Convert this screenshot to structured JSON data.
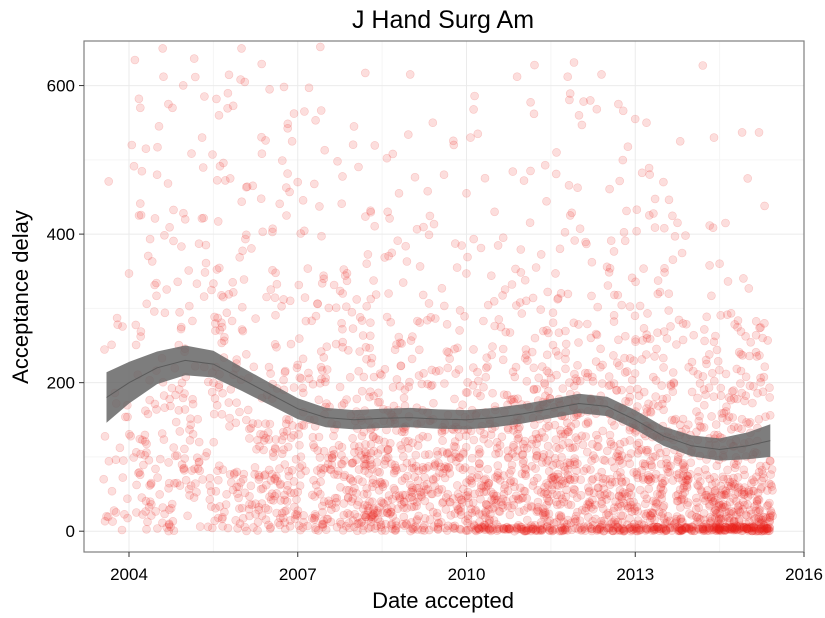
{
  "chart_data": {
    "type": "scatter",
    "title": "J Hand Surg Am",
    "xlabel": "Date accepted",
    "ylabel": "Acceptance delay",
    "xlim": [
      2003.2,
      2016.0
    ],
    "ylim": [
      -28,
      660
    ],
    "x_ticks": [
      2004,
      2007,
      2010,
      2013,
      2016
    ],
    "x_tick_labels": [
      "2004",
      "2007",
      "2010",
      "2013",
      "2016"
    ],
    "y_ticks": [
      0,
      200,
      400,
      600
    ],
    "y_tick_labels": [
      "0",
      "200",
      "400",
      "600"
    ],
    "grid": true,
    "legend": "none",
    "point_color": "#e8241c",
    "point_opacity": 0.15,
    "smooth_color": "#666666",
    "points_sample": [
      [
        2003.6,
        20
      ],
      [
        2003.8,
        278
      ],
      [
        2003.9,
        95
      ],
      [
        2004.0,
        347
      ],
      [
        2004.05,
        520
      ],
      [
        2004.2,
        570
      ],
      [
        2004.3,
        515
      ],
      [
        2004.5,
        480
      ],
      [
        2004.6,
        650
      ],
      [
        2004.7,
        575
      ],
      [
        2005.0,
        420
      ],
      [
        2005.3,
        530
      ],
      [
        2005.5,
        200
      ],
      [
        2005.6,
        560
      ],
      [
        2005.8,
        475
      ],
      [
        2006.0,
        650
      ],
      [
        2006.2,
        465
      ],
      [
        2006.5,
        595
      ],
      [
        2006.8,
        425
      ],
      [
        2006.9,
        525
      ],
      [
        2007.0,
        470
      ],
      [
        2007.2,
        597
      ],
      [
        2007.4,
        652
      ],
      [
        2007.8,
        320
      ],
      [
        2008.0,
        545
      ],
      [
        2008.2,
        617
      ],
      [
        2008.6,
        430
      ],
      [
        2008.8,
        455
      ],
      [
        2009.0,
        615
      ],
      [
        2009.4,
        550
      ],
      [
        2009.6,
        480
      ],
      [
        2010.0,
        455
      ],
      [
        2010.2,
        535
      ],
      [
        2010.5,
        430
      ],
      [
        2010.9,
        612
      ],
      [
        2011.2,
        562
      ],
      [
        2011.6,
        510
      ],
      [
        2011.8,
        612
      ],
      [
        2012.0,
        560
      ],
      [
        2012.2,
        580
      ],
      [
        2012.4,
        615
      ],
      [
        2012.7,
        575
      ],
      [
        2013.0,
        555
      ],
      [
        2013.2,
        550
      ],
      [
        2013.5,
        470
      ],
      [
        2013.8,
        525
      ],
      [
        2014.2,
        627
      ],
      [
        2014.4,
        530
      ],
      [
        2014.9,
        537
      ],
      [
        2015.0,
        475
      ],
      [
        2015.2,
        537
      ],
      [
        2015.3,
        438
      ],
      [
        2015.1,
        195
      ],
      [
        2014.5,
        10
      ],
      [
        2013.5,
        5
      ]
    ],
    "smooth": [
      {
        "x": 2003.6,
        "y": 180,
        "se": 34
      },
      {
        "x": 2004.0,
        "y": 200,
        "se": 28
      },
      {
        "x": 2004.5,
        "y": 220,
        "se": 22
      },
      {
        "x": 2005.0,
        "y": 230,
        "se": 20
      },
      {
        "x": 2005.5,
        "y": 225,
        "se": 18
      },
      {
        "x": 2006.0,
        "y": 205,
        "se": 16
      },
      {
        "x": 2006.5,
        "y": 185,
        "se": 15
      },
      {
        "x": 2007.0,
        "y": 165,
        "se": 14
      },
      {
        "x": 2007.5,
        "y": 153,
        "se": 13
      },
      {
        "x": 2008.0,
        "y": 150,
        "se": 13
      },
      {
        "x": 2008.5,
        "y": 152,
        "se": 13
      },
      {
        "x": 2009.0,
        "y": 153,
        "se": 13
      },
      {
        "x": 2009.5,
        "y": 151,
        "se": 13
      },
      {
        "x": 2010.0,
        "y": 150,
        "se": 13
      },
      {
        "x": 2010.5,
        "y": 153,
        "se": 13
      },
      {
        "x": 2011.0,
        "y": 158,
        "se": 13
      },
      {
        "x": 2011.5,
        "y": 165,
        "se": 13
      },
      {
        "x": 2012.0,
        "y": 172,
        "se": 13
      },
      {
        "x": 2012.5,
        "y": 168,
        "se": 13
      },
      {
        "x": 2013.0,
        "y": 150,
        "se": 13
      },
      {
        "x": 2013.5,
        "y": 128,
        "se": 13
      },
      {
        "x": 2014.0,
        "y": 115,
        "se": 14
      },
      {
        "x": 2014.5,
        "y": 110,
        "se": 15
      },
      {
        "x": 2015.0,
        "y": 115,
        "se": 18
      },
      {
        "x": 2015.4,
        "y": 122,
        "se": 22
      }
    ]
  }
}
